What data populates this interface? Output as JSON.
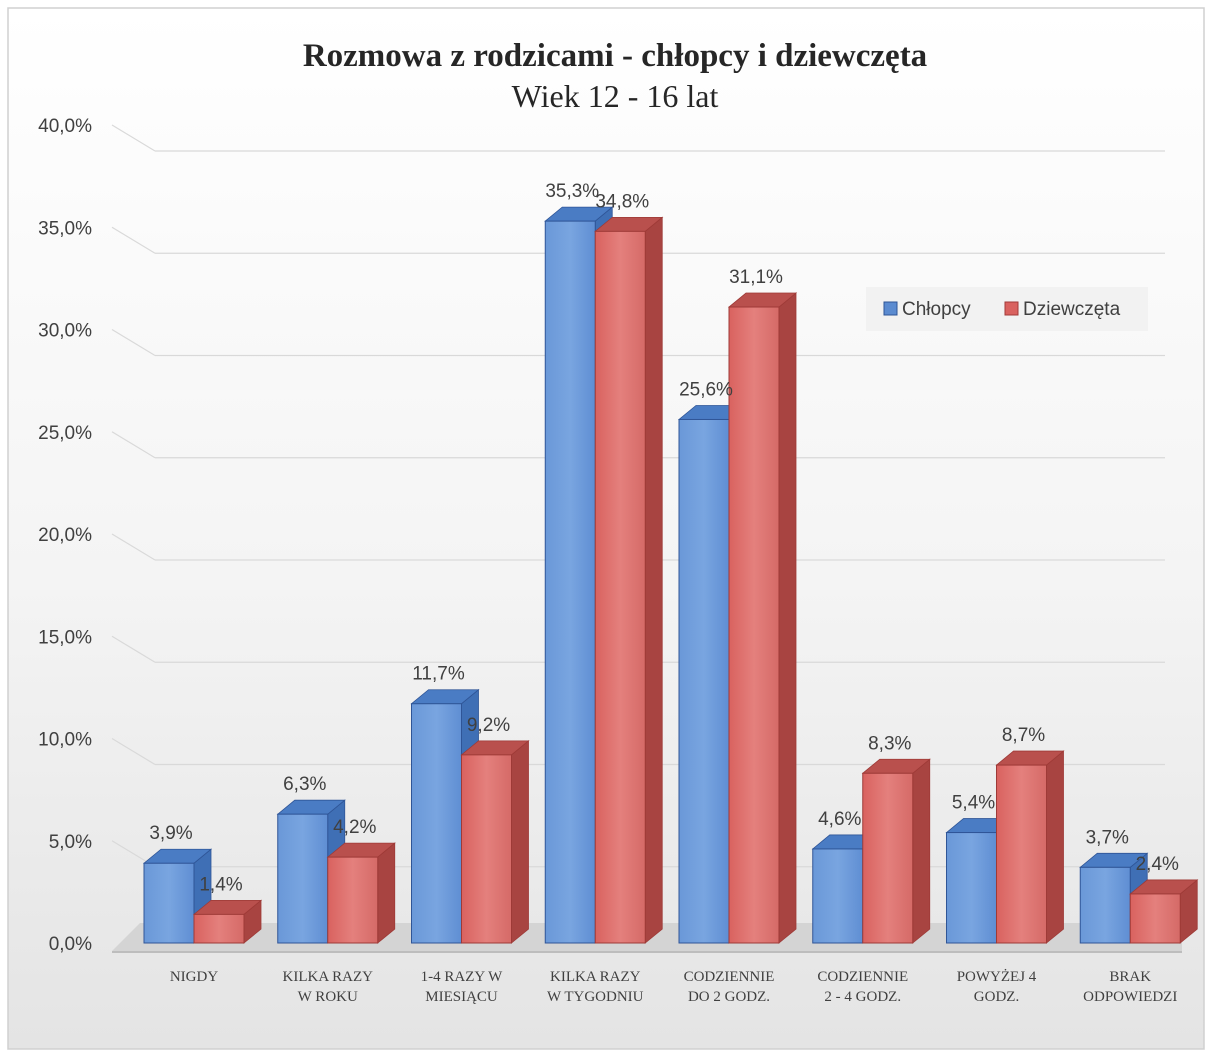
{
  "chart_data": {
    "type": "bar",
    "title": "Rozmowa z rodzicami - chłopcy i dziewczęta",
    "subtitle": "Wiek 12 - 16 lat",
    "categories": [
      [
        "NIGDY"
      ],
      [
        "KILKA RAZY",
        "W ROKU"
      ],
      [
        "1-4 RAZY W",
        "MIESIĄCU"
      ],
      [
        "KILKA RAZY",
        "W TYGODNIU"
      ],
      [
        "CODZIENNIE",
        "DO 2 GODZ."
      ],
      [
        "CODZIENNIE",
        "2 - 4 GODZ."
      ],
      [
        "POWYŻEJ 4",
        "GODZ."
      ],
      [
        "BRAK",
        "ODPOWIEDZI"
      ]
    ],
    "series": [
      {
        "name": "Chłopcy",
        "color": "#5b8bd0",
        "values": [
          3.9,
          6.3,
          11.7,
          35.3,
          25.6,
          4.6,
          5.4,
          3.7
        ],
        "labels": [
          "3,9%",
          "6,3%",
          "11,7%",
          "35,3%",
          "25,6%",
          "4,6%",
          "5,4%",
          "3,7%"
        ]
      },
      {
        "name": "Dziewczęta",
        "color": "#d9625f",
        "values": [
          1.4,
          4.2,
          9.2,
          34.8,
          31.1,
          8.3,
          8.7,
          2.4
        ],
        "labels": [
          "1,4%",
          "4,2%",
          "9,2%",
          "34,8%",
          "31,1%",
          "8,3%",
          "8,7%",
          "2,4%"
        ]
      }
    ],
    "y_ticks": [
      "0,0%",
      "5,0%",
      "10,0%",
      "15,0%",
      "20,0%",
      "25,0%",
      "30,0%",
      "35,0%",
      "40,0%"
    ],
    "ylim": [
      0,
      40
    ],
    "grid": true,
    "legend_position": "top-right",
    "style": "3d-clustered-column"
  }
}
